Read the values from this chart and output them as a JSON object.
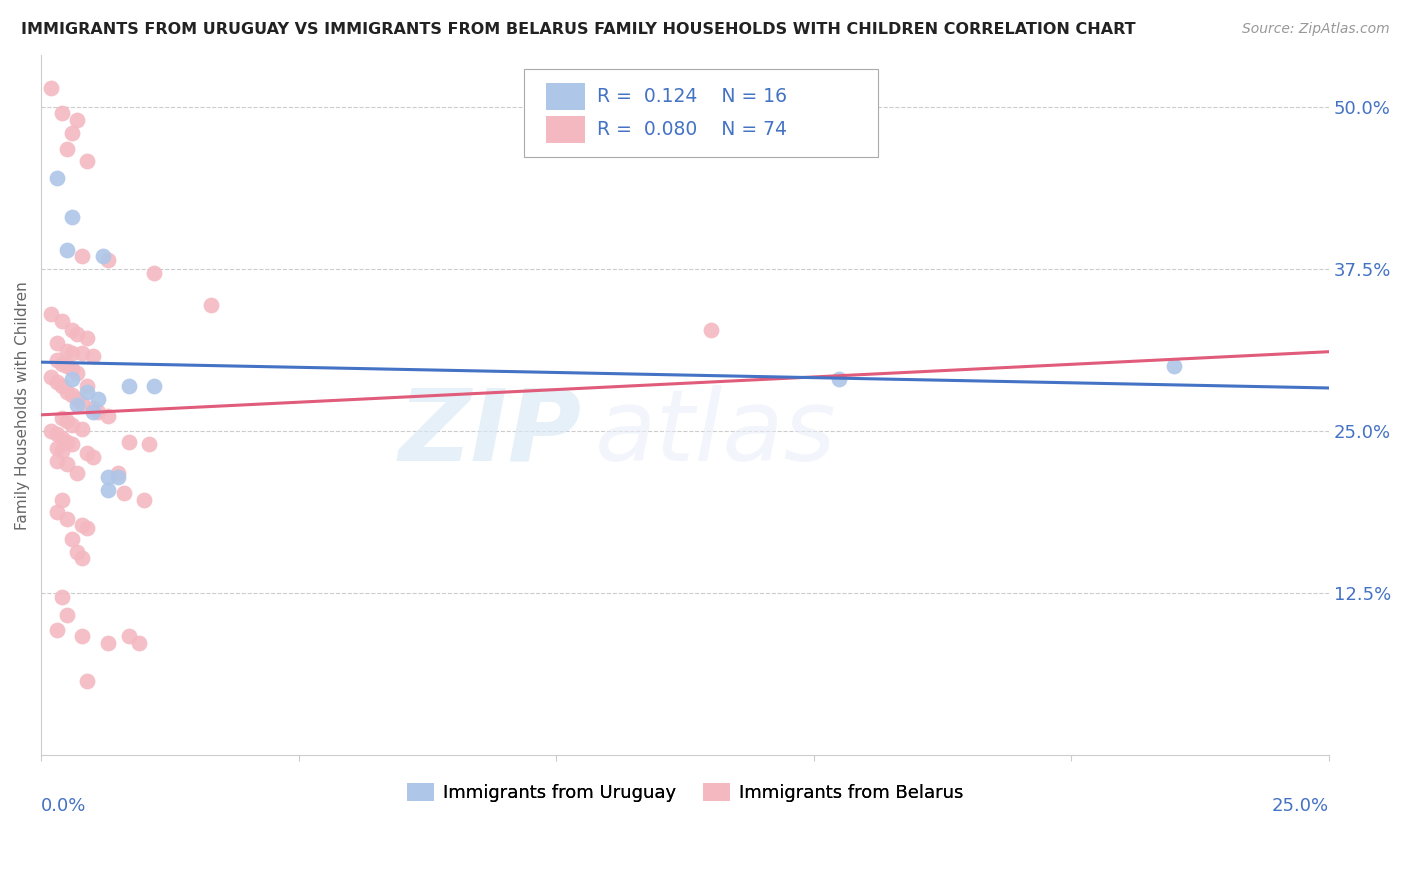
{
  "title": "IMMIGRANTS FROM URUGUAY VS IMMIGRANTS FROM BELARUS FAMILY HOUSEHOLDS WITH CHILDREN CORRELATION CHART",
  "source": "Source: ZipAtlas.com",
  "ylabel": "Family Households with Children",
  "x_label_bottom_left": "0.0%",
  "x_label_bottom_right": "25.0%",
  "y_tick_labels": [
    "12.5%",
    "25.0%",
    "37.5%",
    "50.0%"
  ],
  "y_tick_values": [
    0.125,
    0.25,
    0.375,
    0.5
  ],
  "xlim": [
    0.0,
    0.25
  ],
  "ylim": [
    0.0,
    0.54
  ],
  "legend_r_uruguay": "0.124",
  "legend_n_uruguay": "16",
  "legend_r_belarus": "0.080",
  "legend_n_belarus": "74",
  "uruguay_color": "#aec6e8",
  "belarus_color": "#f4b8c1",
  "uruguay_line_color": "#4472c4",
  "belarus_line_color": "#e05c7a",
  "watermark_zip": "ZIP",
  "watermark_atlas": "atlas",
  "grid_color": "#cccccc",
  "uruguay_points": [
    [
      0.003,
      0.445
    ],
    [
      0.006,
      0.415
    ],
    [
      0.005,
      0.39
    ],
    [
      0.012,
      0.385
    ],
    [
      0.017,
      0.285
    ],
    [
      0.022,
      0.285
    ],
    [
      0.006,
      0.29
    ],
    [
      0.009,
      0.28
    ],
    [
      0.011,
      0.275
    ],
    [
      0.007,
      0.27
    ],
    [
      0.01,
      0.265
    ],
    [
      0.013,
      0.215
    ],
    [
      0.015,
      0.215
    ],
    [
      0.013,
      0.205
    ],
    [
      0.22,
      0.3
    ],
    [
      0.155,
      0.29
    ]
  ],
  "belarus_points": [
    [
      0.002,
      0.515
    ],
    [
      0.004,
      0.495
    ],
    [
      0.007,
      0.49
    ],
    [
      0.006,
      0.48
    ],
    [
      0.005,
      0.468
    ],
    [
      0.009,
      0.458
    ],
    [
      0.008,
      0.385
    ],
    [
      0.013,
      0.382
    ],
    [
      0.022,
      0.372
    ],
    [
      0.033,
      0.347
    ],
    [
      0.002,
      0.34
    ],
    [
      0.004,
      0.335
    ],
    [
      0.006,
      0.328
    ],
    [
      0.007,
      0.325
    ],
    [
      0.009,
      0.322
    ],
    [
      0.003,
      0.318
    ],
    [
      0.005,
      0.312
    ],
    [
      0.006,
      0.31
    ],
    [
      0.008,
      0.31
    ],
    [
      0.01,
      0.308
    ],
    [
      0.003,
      0.305
    ],
    [
      0.004,
      0.302
    ],
    [
      0.005,
      0.3
    ],
    [
      0.006,
      0.298
    ],
    [
      0.007,
      0.295
    ],
    [
      0.002,
      0.292
    ],
    [
      0.003,
      0.288
    ],
    [
      0.004,
      0.285
    ],
    [
      0.009,
      0.285
    ],
    [
      0.005,
      0.28
    ],
    [
      0.006,
      0.278
    ],
    [
      0.007,
      0.275
    ],
    [
      0.008,
      0.272
    ],
    [
      0.01,
      0.268
    ],
    [
      0.011,
      0.265
    ],
    [
      0.013,
      0.262
    ],
    [
      0.004,
      0.26
    ],
    [
      0.005,
      0.258
    ],
    [
      0.006,
      0.255
    ],
    [
      0.008,
      0.252
    ],
    [
      0.002,
      0.25
    ],
    [
      0.003,
      0.248
    ],
    [
      0.004,
      0.245
    ],
    [
      0.005,
      0.242
    ],
    [
      0.006,
      0.24
    ],
    [
      0.017,
      0.242
    ],
    [
      0.021,
      0.24
    ],
    [
      0.003,
      0.237
    ],
    [
      0.004,
      0.235
    ],
    [
      0.009,
      0.233
    ],
    [
      0.01,
      0.23
    ],
    [
      0.003,
      0.227
    ],
    [
      0.005,
      0.225
    ],
    [
      0.007,
      0.218
    ],
    [
      0.015,
      0.218
    ],
    [
      0.016,
      0.202
    ],
    [
      0.004,
      0.197
    ],
    [
      0.02,
      0.197
    ],
    [
      0.003,
      0.188
    ],
    [
      0.005,
      0.182
    ],
    [
      0.008,
      0.178
    ],
    [
      0.009,
      0.175
    ],
    [
      0.006,
      0.167
    ],
    [
      0.007,
      0.157
    ],
    [
      0.008,
      0.152
    ],
    [
      0.004,
      0.122
    ],
    [
      0.005,
      0.108
    ],
    [
      0.003,
      0.097
    ],
    [
      0.008,
      0.092
    ],
    [
      0.017,
      0.092
    ],
    [
      0.013,
      0.087
    ],
    [
      0.019,
      0.087
    ],
    [
      0.009,
      0.057
    ],
    [
      0.13,
      0.328
    ]
  ]
}
